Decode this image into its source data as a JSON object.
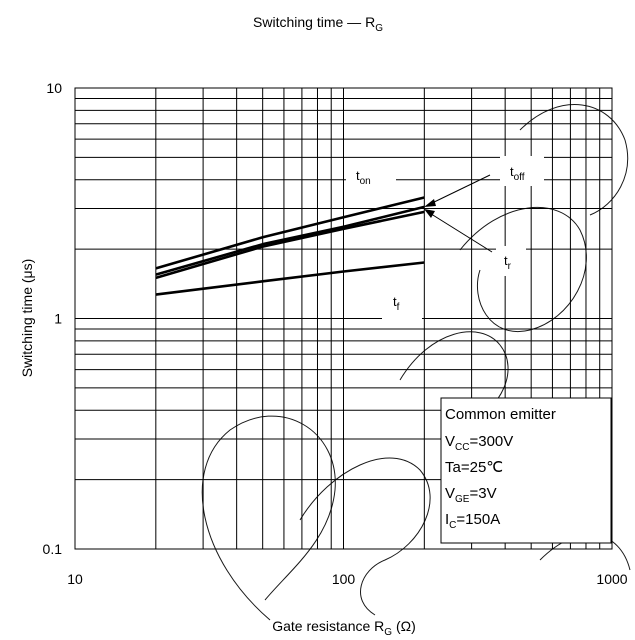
{
  "chart_data": {
    "type": "line",
    "title": {
      "main": "Switching time  —  R",
      "sub": "G"
    },
    "xlabel": {
      "main": "Gate resistance  R",
      "sub": "G",
      "tail": "  (Ω)"
    },
    "ylabel": "Switching time  (μs)",
    "x_scale": "log",
    "y_scale": "log",
    "xlim": [
      10,
      1000
    ],
    "ylim": [
      0.1,
      10
    ],
    "x_ticks": [
      "10",
      "100",
      "1000"
    ],
    "y_ticks": [
      "10",
      "1",
      "0.1"
    ],
    "grid": true,
    "series": [
      {
        "name": "ton",
        "label_main": "t",
        "label_sub": "on",
        "x": [
          20,
          50,
          100,
          200
        ],
        "y": [
          1.65,
          2.25,
          2.75,
          3.35
        ]
      },
      {
        "name": "toff",
        "label_main": "t",
        "label_sub": "off",
        "x": [
          20,
          50,
          100,
          200
        ],
        "y": [
          1.55,
          2.1,
          2.5,
          3.05
        ]
      },
      {
        "name": "tr",
        "label_main": "t",
        "label_sub": "r",
        "x": [
          20,
          50,
          100,
          200
        ],
        "y": [
          1.5,
          2.05,
          2.45,
          2.9
        ]
      },
      {
        "name": "tf",
        "label_main": "t",
        "label_sub": "f",
        "x": [
          20,
          50,
          100,
          200
        ],
        "y": [
          1.27,
          1.45,
          1.6,
          1.75
        ]
      }
    ],
    "conditions": [
      {
        "main": "Common emitter",
        "sub": "",
        "tail": ""
      },
      {
        "main": "V",
        "sub": "CC",
        "tail": "=300V"
      },
      {
        "main": "Ta=25℃",
        "sub": "",
        "tail": ""
      },
      {
        "main": "V",
        "sub": "GE",
        "tail": "=3V"
      },
      {
        "main": "I",
        "sub": "C",
        "tail": "=150A"
      }
    ]
  }
}
